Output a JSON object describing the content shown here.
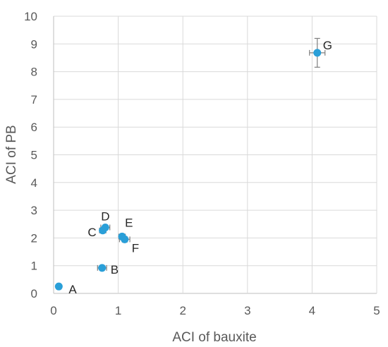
{
  "chart_data": {
    "type": "scatter",
    "title": "",
    "xlabel": "ACI of bauxite",
    "ylabel": "ACI of PB",
    "xlim": [
      0,
      5
    ],
    "ylim": [
      0,
      10
    ],
    "x_ticks": [
      "0",
      "1",
      "2",
      "3",
      "4",
      "5"
    ],
    "y_ticks": [
      "0",
      "1",
      "2",
      "3",
      "4",
      "5",
      "6",
      "7",
      "8",
      "9",
      "10"
    ],
    "grid": true,
    "legend": "none",
    "marker_color": "#2a9fd8",
    "error_bar_color": "#7f7f7f",
    "points": [
      {
        "label": "A",
        "x": 0.08,
        "y": 0.25,
        "xerr": 0.02,
        "yerr": 0.03
      },
      {
        "label": "B",
        "x": 0.75,
        "y": 0.92,
        "xerr": 0.07,
        "yerr": 0.05
      },
      {
        "label": "C",
        "x": 0.76,
        "y": 2.27,
        "xerr": 0.05,
        "yerr": 0.08
      },
      {
        "label": "D",
        "x": 0.8,
        "y": 2.38,
        "xerr": 0.07,
        "yerr": 0.07
      },
      {
        "label": "E",
        "x": 1.06,
        "y": 2.05,
        "xerr": 0.05,
        "yerr": 0.06
      },
      {
        "label": "F",
        "x": 1.1,
        "y": 1.95,
        "xerr": 0.08,
        "yerr": 0.1
      },
      {
        "label": "G",
        "x": 4.08,
        "y": 8.68,
        "xerr": 0.12,
        "yerr": 0.52
      }
    ]
  }
}
